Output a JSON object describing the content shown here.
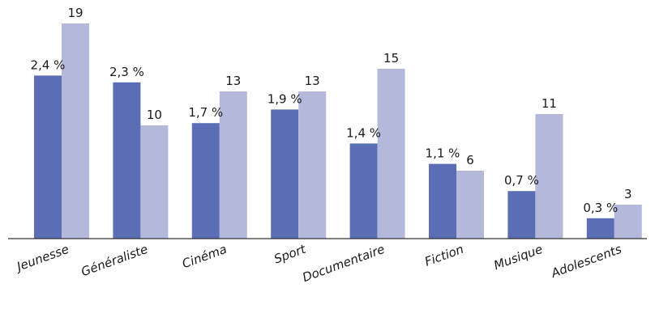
{
  "chart_data": {
    "type": "bar",
    "categories": [
      "Jeunesse",
      "Généraliste",
      "Cinéma",
      "Sport",
      "Documentaire",
      "Fiction",
      "Musique",
      "Adolescents"
    ],
    "series": [
      {
        "values": [
          2.4,
          2.3,
          1.7,
          1.9,
          1.4,
          1.1,
          0.7,
          0.3
        ],
        "labels": [
          "2,4 %",
          "2,3 %",
          "1,7 %",
          "1,9 %",
          "1,4 %",
          "1,1 %",
          "0,7 %",
          "0,3 %"
        ],
        "color": "#5b6db5"
      },
      {
        "values": [
          19,
          10,
          13,
          13,
          15,
          6,
          11,
          3
        ],
        "labels": [
          "19",
          "10",
          "13",
          "13",
          "15",
          "6",
          "11",
          "3"
        ],
        "color": "#b4b9dc"
      }
    ],
    "title": "",
    "xlabel": "",
    "ylabel": "",
    "grid": false,
    "legend": "none"
  }
}
